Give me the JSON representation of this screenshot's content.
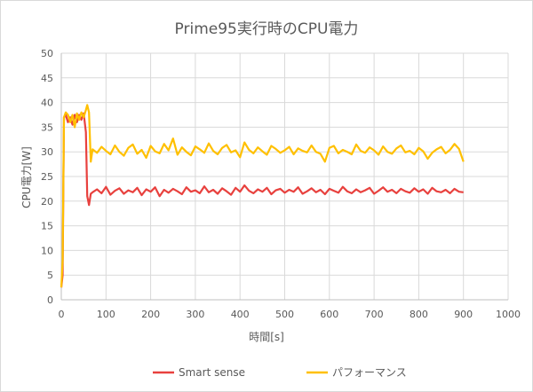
{
  "chart_data": {
    "type": "line",
    "title": "Prime95実行時のCPU電力",
    "xlabel": "時間[s]",
    "ylabel": "CPU電力[W]",
    "xlim": [
      0,
      1000
    ],
    "ylim": [
      0,
      50
    ],
    "xticks": [
      0,
      100,
      200,
      300,
      400,
      500,
      600,
      700,
      800,
      900,
      1000
    ],
    "yticks": [
      0,
      5,
      10,
      15,
      20,
      25,
      30,
      35,
      40,
      45,
      50
    ],
    "grid": true,
    "legend": "bottom",
    "x": [
      0,
      3,
      6,
      10,
      15,
      20,
      25,
      30,
      35,
      40,
      45,
      50,
      55,
      58,
      62,
      66,
      70,
      80,
      90,
      100,
      110,
      120,
      130,
      140,
      150,
      160,
      170,
      180,
      190,
      200,
      210,
      220,
      230,
      240,
      250,
      260,
      270,
      280,
      290,
      300,
      310,
      320,
      330,
      340,
      350,
      360,
      370,
      380,
      390,
      400,
      410,
      420,
      430,
      440,
      450,
      460,
      470,
      480,
      490,
      500,
      510,
      520,
      530,
      540,
      550,
      560,
      570,
      580,
      590,
      600,
      610,
      620,
      630,
      640,
      650,
      660,
      670,
      680,
      690,
      700,
      710,
      720,
      730,
      740,
      750,
      760,
      770,
      780,
      790,
      800,
      810,
      820,
      830,
      840,
      850,
      860,
      870,
      880,
      890,
      900
    ],
    "series": [
      {
        "name": "Smart sense",
        "color": "#E8413E",
        "values": [
          2.5,
          5,
          37,
          37.5,
          36,
          37,
          35.5,
          37.5,
          36,
          37.5,
          36.5,
          37.8,
          34,
          21,
          19.2,
          21.5,
          21.8,
          22.4,
          21.6,
          22.9,
          21.3,
          22.1,
          22.6,
          21.5,
          22.2,
          21.8,
          22.7,
          21.2,
          22.4,
          21.9,
          22.8,
          21.0,
          22.3,
          21.7,
          22.5,
          22.0,
          21.4,
          22.8,
          21.9,
          22.2,
          21.6,
          23.0,
          21.8,
          22.3,
          21.5,
          22.6,
          22.0,
          21.3,
          22.7,
          21.9,
          23.2,
          22.1,
          21.6,
          22.4,
          21.9,
          22.7,
          21.4,
          22.2,
          22.5,
          21.7,
          22.3,
          21.9,
          22.8,
          21.5,
          22.0,
          22.6,
          21.8,
          22.3,
          21.4,
          22.5,
          22.1,
          21.7,
          22.9,
          22.0,
          21.6,
          22.4,
          21.8,
          22.2,
          22.7,
          21.5,
          22.1,
          22.8,
          21.9,
          22.3,
          21.6,
          22.5,
          22.0,
          21.7,
          22.6,
          21.9,
          22.4,
          21.5,
          22.7,
          22.0,
          21.8,
          22.3,
          21.6,
          22.5,
          21.9,
          21.8
        ]
      },
      {
        "name": "パフォーマンス",
        "color": "#FFC000",
        "values": [
          2.5,
          8,
          37,
          38,
          37.5,
          36,
          37.5,
          35,
          37.8,
          36.5,
          38,
          37,
          38.5,
          39.5,
          38,
          28,
          30.5,
          29.8,
          31.0,
          30.2,
          29.5,
          31.3,
          30.0,
          29.2,
          30.8,
          31.5,
          29.6,
          30.4,
          28.8,
          31.2,
          30.1,
          29.7,
          31.6,
          30.3,
          32.7,
          29.4,
          30.9,
          30.0,
          29.3,
          31.1,
          30.5,
          29.8,
          31.7,
          30.2,
          29.5,
          30.8,
          31.4,
          29.9,
          30.3,
          28.9,
          31.9,
          30.4,
          29.7,
          30.9,
          30.1,
          29.4,
          31.2,
          30.6,
          29.8,
          30.3,
          31.0,
          29.5,
          30.7,
          30.2,
          29.9,
          31.3,
          30.0,
          29.6,
          28.0,
          30.8,
          31.2,
          29.7,
          30.4,
          30.0,
          29.5,
          31.5,
          30.2,
          29.8,
          30.9,
          30.3,
          29.4,
          31.1,
          30.0,
          29.6,
          30.7,
          31.3,
          29.9,
          30.2,
          29.5,
          30.8,
          30.1,
          28.6,
          29.8,
          30.5,
          31.0,
          29.7,
          30.4,
          31.6,
          30.6,
          28.0
        ]
      }
    ]
  }
}
